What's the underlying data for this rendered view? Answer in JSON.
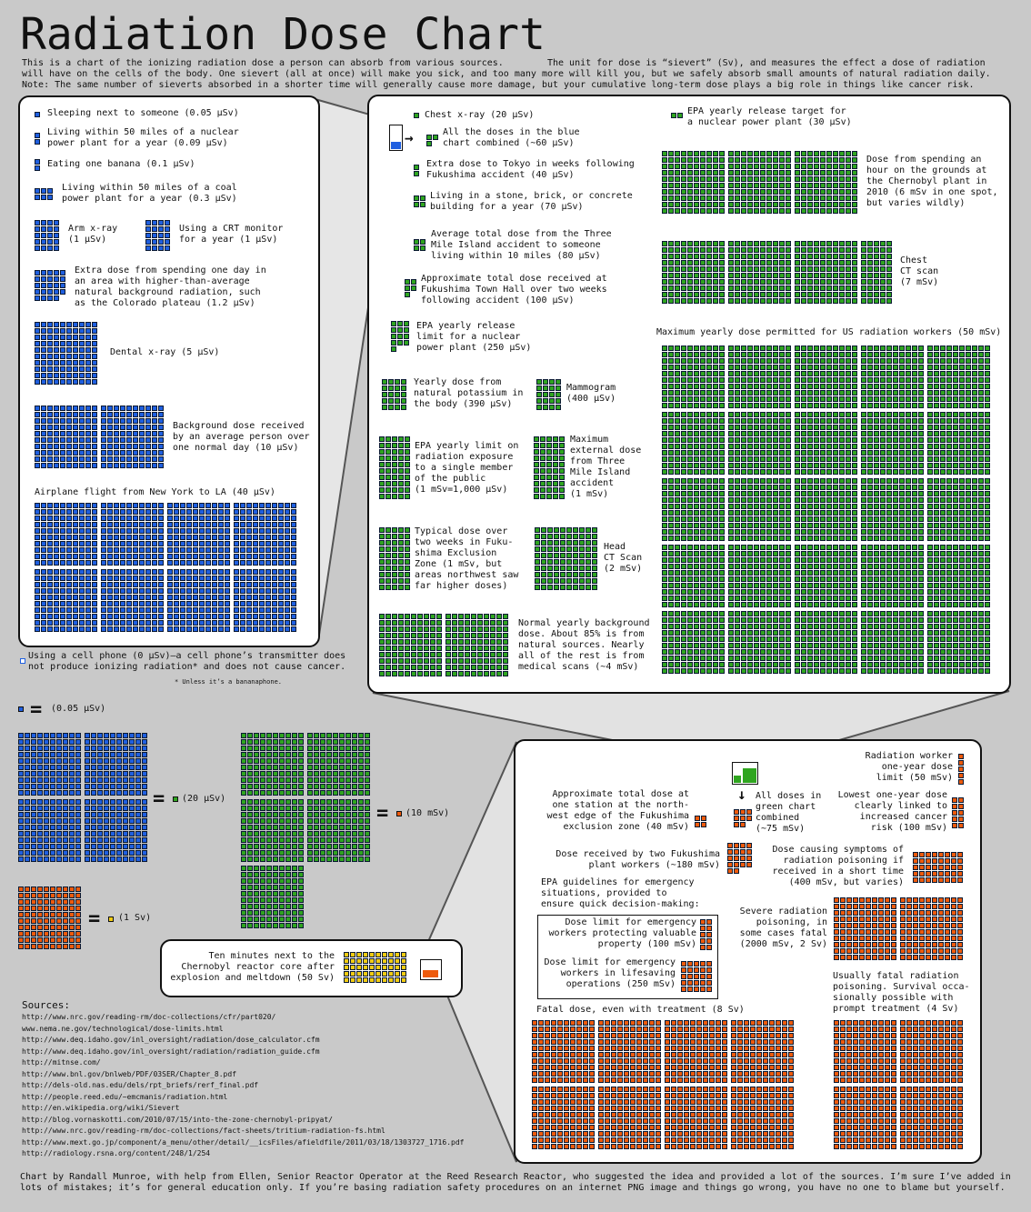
{
  "title": "Radiation Dose Chart",
  "intro": "This is a chart of the ionizing radiation dose a person can absorb from various sources.        The unit for dose is “sievert” (Sv), and measures the effect a dose of radiation\nwill have on the cells of the body. One sievert (all at once) will make you sick, and too many more will kill you, but we safely absorb small amounts of natural radiation daily.\nNote: The same number of sieverts absorbed in a shorter time will generally cause more damage, but your cumulative long-term dose plays a big role in things like cancer risk.",
  "colors": {
    "blue": "#1f5fe0",
    "green": "#2fa51f",
    "orange": "#ee5a0c",
    "yellow": "#f2cc12",
    "background": "#c9c9c9",
    "panel": "#ffffff"
  },
  "chart_data": {
    "type": "table",
    "title": "Radiation Dose Chart",
    "blue": {
      "square_value_usv": 0.05,
      "items": [
        {
          "label": "Sleeping next to someone (0.05 µSv)",
          "dose_usv": 0.05
        },
        {
          "label": "Living within 50 miles of a nuclear\npower plant for a year (0.09 µSv)",
          "dose_usv": 0.09
        },
        {
          "label": "Eating one banana (0.1 µSv)",
          "dose_usv": 0.1
        },
        {
          "label": "Living within 50 miles of a coal\npower plant for a year (0.3 µSv)",
          "dose_usv": 0.3
        },
        {
          "label": "Arm x-ray\n(1 µSv)",
          "dose_usv": 1
        },
        {
          "label": "Using a CRT monitor\nfor a year (1 µSv)",
          "dose_usv": 1
        },
        {
          "label": "Extra dose from spending one day in\nan area with higher-than-average\nnatural background radiation, such\nas the Colorado plateau (1.2 µSv)",
          "dose_usv": 1.2
        },
        {
          "label": "Dental x-ray (5 µSv)",
          "dose_usv": 5
        },
        {
          "label": "Background dose received\nby an average person over\none normal day (10 µSv)",
          "dose_usv": 10
        },
        {
          "label": "Airplane flight from New York to LA (40 µSv)",
          "dose_usv": 40
        }
      ],
      "cell_phone": {
        "label": "Using a cell phone (0 µSv)—a cell phone’s transmitter does\nnot produce ionizing radiation* and does not cause cancer.",
        "dose_usv": 0,
        "footnote": "* Unless it’s a bananaphone."
      }
    },
    "green": {
      "square_value_usv": 20,
      "items": [
        {
          "label": "Chest x-ray (20 µSv)",
          "dose_usv": 20
        },
        {
          "label": "All the doses in the blue\nchart combined (~60 µSv)",
          "dose_usv": 60
        },
        {
          "label": "Extra dose to Tokyo in weeks following\nFukushima accident (40 µSv)",
          "dose_usv": 40
        },
        {
          "label": "Living in a stone, brick, or concrete\nbuilding for a year (70 µSv)",
          "dose_usv": 70
        },
        {
          "label": "Average total dose from the Three\nMile Island accident to someone\nliving within 10 miles (80 µSv)",
          "dose_usv": 80
        },
        {
          "label": "Approximate total dose received at\nFukushima Town Hall over two weeks\nfollowing accident (100 µSv)",
          "dose_usv": 100
        },
        {
          "label": "EPA yearly release\nlimit for a nuclear\npower plant (250 µSv)",
          "dose_usv": 250
        },
        {
          "label": "Yearly dose from\nnatural potassium in\nthe body (390 µSv)",
          "dose_usv": 390
        },
        {
          "label": "Mammogram\n(400 µSv)",
          "dose_usv": 400
        },
        {
          "label": "EPA yearly limit on\nradiation exposure\nto a single member\nof the public\n(1 mSv=1,000 µSv)",
          "dose_usv": 1000
        },
        {
          "label": "Maximum\nexternal dose\nfrom Three\nMile Island\naccident\n(1 mSv)",
          "dose_usv": 1000
        },
        {
          "label": "Typical dose over\ntwo weeks in Fuku-\nshima Exclusion\nZone (1 mSv, but\nareas northwest saw\nfar higher doses)",
          "dose_usv": 1000
        },
        {
          "label": "Head\nCT Scan\n(2 mSv)",
          "dose_usv": 2000
        },
        {
          "label": "Normal yearly background\ndose. About 85% is from\nnatural sources. Nearly\nall of the rest is from\nmedical scans (~4 mSv)",
          "dose_usv": 4000
        },
        {
          "label": "EPA yearly release target for\na nuclear power plant (30 µSv)",
          "dose_usv": 30
        },
        {
          "label": "Dose from spending an\nhour on the grounds at\nthe Chernobyl plant in\n2010 (6 mSv in one spot,\nbut varies wildly)",
          "dose_usv": 6000
        },
        {
          "label": "Chest\nCT scan\n(7 mSv)",
          "dose_usv": 7000
        },
        {
          "label": "Maximum yearly dose permitted for US radiation workers (50 mSv)",
          "dose_usv": 50000
        }
      ]
    },
    "orange": {
      "square_value_usv": 10000,
      "items": [
        {
          "label": "Radiation worker\none-year dose\nlimit (50 mSv)",
          "dose_usv": 50000
        },
        {
          "label": "Approximate total dose at\none station at the north-\nwest edge of the Fukushima\nexclusion zone (40 mSv)",
          "dose_usv": 40000
        },
        {
          "label": "All doses in\ngreen chart\ncombined\n(~75 mSv)",
          "dose_usv": 75000
        },
        {
          "label": "Lowest one-year dose\nclearly linked to\nincreased cancer\nrisk (100 mSv)",
          "dose_usv": 100000
        },
        {
          "label": "Dose received by two Fukushima\nplant workers (~180 mSv)",
          "dose_usv": 180000
        },
        {
          "label": "Dose causing symptoms of\nradiation poisoning if\nreceived in a short time\n(400 mSv, but varies)",
          "dose_usv": 400000
        },
        {
          "label": "Dose limit for emergency\nworkers protecting valuable\nproperty (100 mSv)",
          "dose_usv": 100000
        },
        {
          "label": "Dose limit for emergency\nworkers in lifesaving\noperations (250 mSv)",
          "dose_usv": 250000
        },
        {
          "label": "Severe radiation\npoisoning, in\nsome cases fatal\n(2000 mSv, 2 Sv)",
          "dose_usv": 2000000
        },
        {
          "label": "Usually fatal radiation\npoisoning. Survival occa-\nsionally possible with\nprompt treatment (4 Sv)",
          "dose_usv": 4000000
        },
        {
          "label": "Fatal dose, even with treatment (8 Sv)",
          "dose_usv": 8000000
        }
      ],
      "epa_guidelines": "EPA guidelines for emergency\nsituations, provided to\nensure quick decision-making:"
    },
    "yellow": {
      "square_value_usv": 1000000,
      "items": [
        {
          "label": "Ten minutes next to the\nChernobyl reactor core after\nexplosion and meltdown (50 Sv)",
          "dose_usv": 50000000
        }
      ]
    }
  },
  "legend": {
    "equals": "=",
    "blue_unit": "(0.05 µSv)",
    "green_unit": "(20 µSv)",
    "orange_unit": "(10 mSv)",
    "yellow_unit": "(1 Sv)",
    "blue_total_usv": 20,
    "green_total_usv": 10000,
    "orange_total_usv": 1000000
  },
  "sources": {
    "title": "Sources:",
    "urls": [
      "http://www.nrc.gov/reading-rm/doc-collections/cfr/part020/",
      "www.nema.ne.gov/technological/dose-limits.html",
      "http://www.deq.idaho.gov/inl_oversight/radiation/dose_calculator.cfm",
      "http://www.deq.idaho.gov/inl_oversight/radiation/radiation_guide.cfm",
      "http://mitnse.com/",
      "http://www.bnl.gov/bnlweb/PDF/03SER/Chapter_8.pdf",
      "http://dels-old.nas.edu/dels/rpt_briefs/rerf_final.pdf",
      "http://people.reed.edu/~emcmanis/radiation.html",
      "http://en.wikipedia.org/wiki/Sievert",
      "http://blog.vornaskotti.com/2010/07/15/into-the-zone-chernobyl-pripyat/",
      "http://www.nrc.gov/reading-rm/doc-collections/fact-sheets/tritium-radiation-fs.html",
      "http://www.mext.go.jp/component/a_menu/other/detail/__icsFiles/afieldfile/2011/03/18/1303727_1716.pdf",
      "http://radiology.rsna.org/content/248/1/254"
    ]
  },
  "credits": "Chart by Randall Munroe, with help from Ellen, Senior Reactor Operator at the Reed Research Reactor, who suggested the idea and provided a lot of the sources. I’m sure I’ve added in\nlots of mistakes; it’s for general education only. If you’re basing radiation safety procedures on an internet PNG image and things go wrong, you have no one to blame but yourself."
}
